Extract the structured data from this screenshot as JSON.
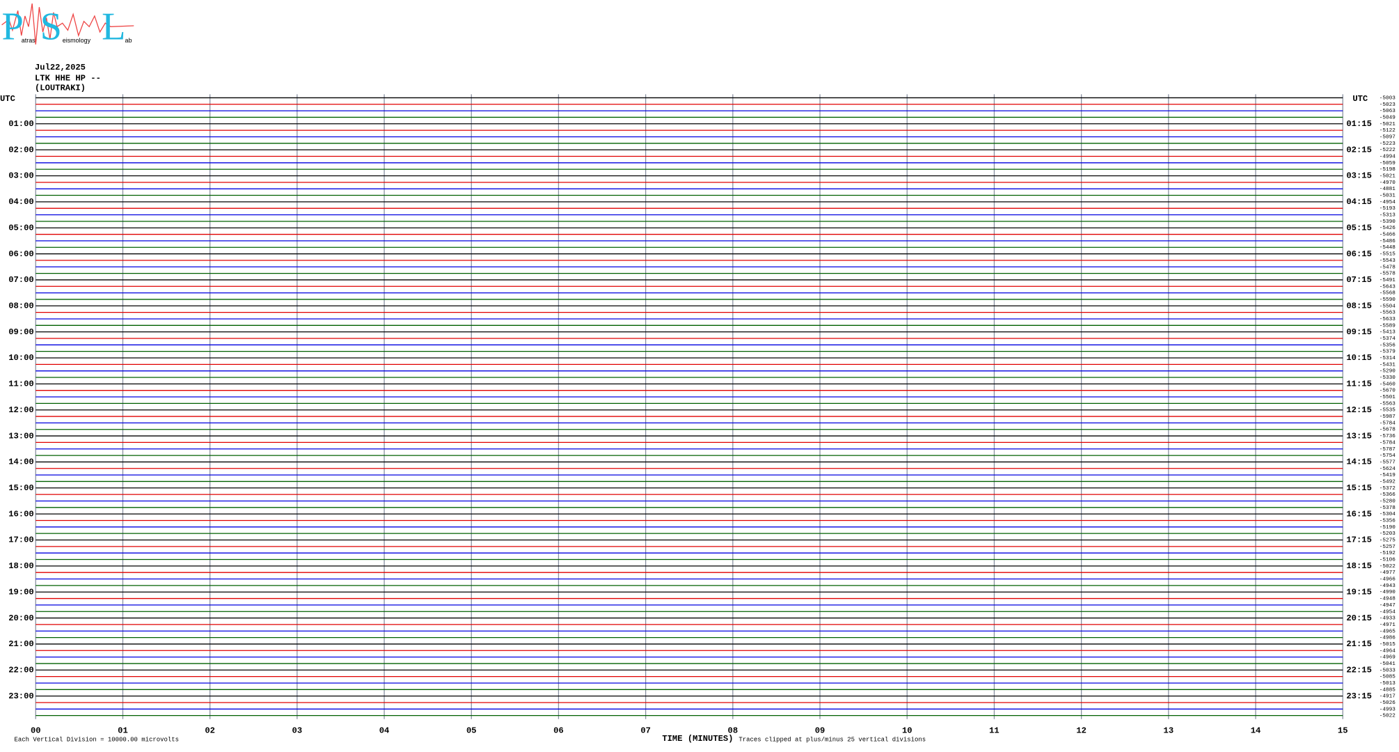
{
  "logo": {
    "p": "P",
    "s": "S",
    "l": "L",
    "p_rest": "atras",
    "s_rest": "eismology",
    "l_rest": "ab"
  },
  "header": {
    "date": "Jul22,2025",
    "station": "LTK HHE HP --",
    "location": "(LOUTRAKI)"
  },
  "left_labels": [
    "UTC",
    "01:00",
    "02:00",
    "03:00",
    "04:00",
    "05:00",
    "06:00",
    "07:00",
    "08:00",
    "09:00",
    "10:00",
    "11:00",
    "12:00",
    "13:00",
    "14:00",
    "15:00",
    "16:00",
    "17:00",
    "18:00",
    "19:00",
    "20:00",
    "21:00",
    "22:00",
    "23:00"
  ],
  "right_labels": [
    "UTC",
    "01:15",
    "02:15",
    "03:15",
    "04:15",
    "05:15",
    "06:15",
    "07:15",
    "08:15",
    "09:15",
    "10:15",
    "11:15",
    "12:15",
    "13:15",
    "14:15",
    "15:15",
    "16:15",
    "17:15",
    "18:15",
    "19:15",
    "20:15",
    "21:15",
    "22:15",
    "23:15"
  ],
  "row_offsets": [
    -5003,
    -5023,
    -5063,
    -5049,
    -5021,
    -5122,
    -5097,
    -5223,
    -5222,
    -4994,
    -5059,
    -5198,
    -5021,
    -4970,
    -4881,
    -5031,
    -4954,
    -5193,
    -5313,
    -5390,
    -5426,
    -5466,
    -5486,
    -5448,
    -5515,
    -5543,
    -5478,
    -5578,
    -5491,
    -5643,
    -5568,
    -5590,
    -5504,
    -5563,
    -5633,
    -5589,
    -5413,
    -5374,
    -5356,
    -5379,
    -5314,
    -5431,
    -5290,
    -5330,
    -5460,
    -5670,
    -5501,
    -5563,
    -5535,
    -5987,
    -5784,
    -5678,
    -5736,
    -5784,
    -5787,
    -5754,
    -5577,
    -5624,
    -5419,
    -5492,
    -5372,
    -5366,
    -5280,
    -5378,
    -5304,
    -5356,
    -5190,
    -5203,
    -5275,
    -5257,
    -5192,
    -5106,
    -5022,
    -4977,
    -4966,
    -4943,
    -4990,
    -4948,
    -4947,
    -4954,
    -4933,
    -4971,
    -4965,
    -4986,
    -5015,
    -4964,
    -4969,
    -5041,
    -5033,
    -5085,
    -5013,
    -4885,
    -4917,
    -5026,
    -4993,
    -5022
  ],
  "x_labels": [
    "00",
    "01",
    "02",
    "03",
    "04",
    "05",
    "06",
    "07",
    "08",
    "09",
    "10",
    "11",
    "12",
    "13",
    "14",
    "15"
  ],
  "x_axis_title": "TIME (MINUTES)",
  "footer": {
    "scale": "Each Vertical Division = 10000.00 microvolts",
    "clip": "Traces clipped at plus/minus 25 vertical divisions"
  }
}
